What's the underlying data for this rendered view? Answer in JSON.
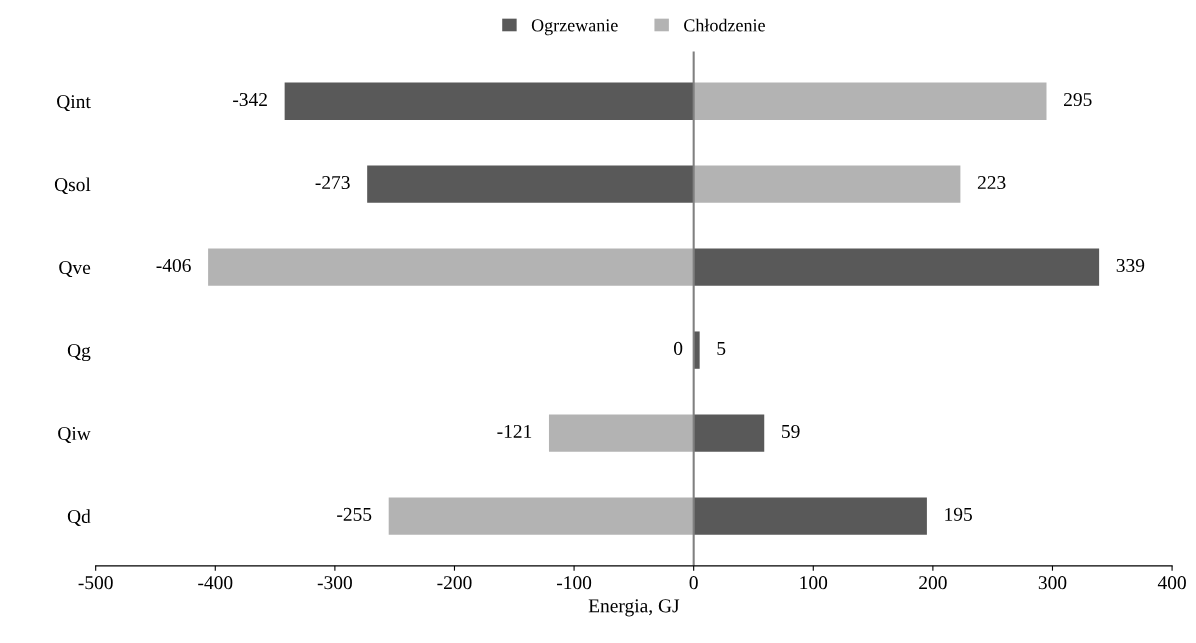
{
  "chart_data": {
    "type": "bar",
    "orientation": "horizontal",
    "xlabel": "Energia, GJ",
    "categories": [
      "Qint",
      "Qsol",
      "Qve",
      "Qg",
      "Qiw",
      "Qd"
    ],
    "series": [
      {
        "name": "Ogrzewanie",
        "color": "#595959",
        "values": [
          -342,
          -273,
          339,
          5,
          59,
          195
        ]
      },
      {
        "name": "Chłodzenie",
        "color": "#b3b3b3",
        "values": [
          295,
          223,
          -406,
          0,
          -121,
          -255
        ]
      }
    ],
    "xlim": [
      -500,
      400
    ],
    "xticks": [
      -500,
      -400,
      -300,
      -200,
      -100,
      0,
      100,
      200,
      300,
      400
    ],
    "data_labels": true,
    "stacked": true,
    "ref_lines": [
      {
        "axis": "x",
        "value": 0,
        "color": "#808080"
      }
    ],
    "legend": "top",
    "grid": false
  }
}
